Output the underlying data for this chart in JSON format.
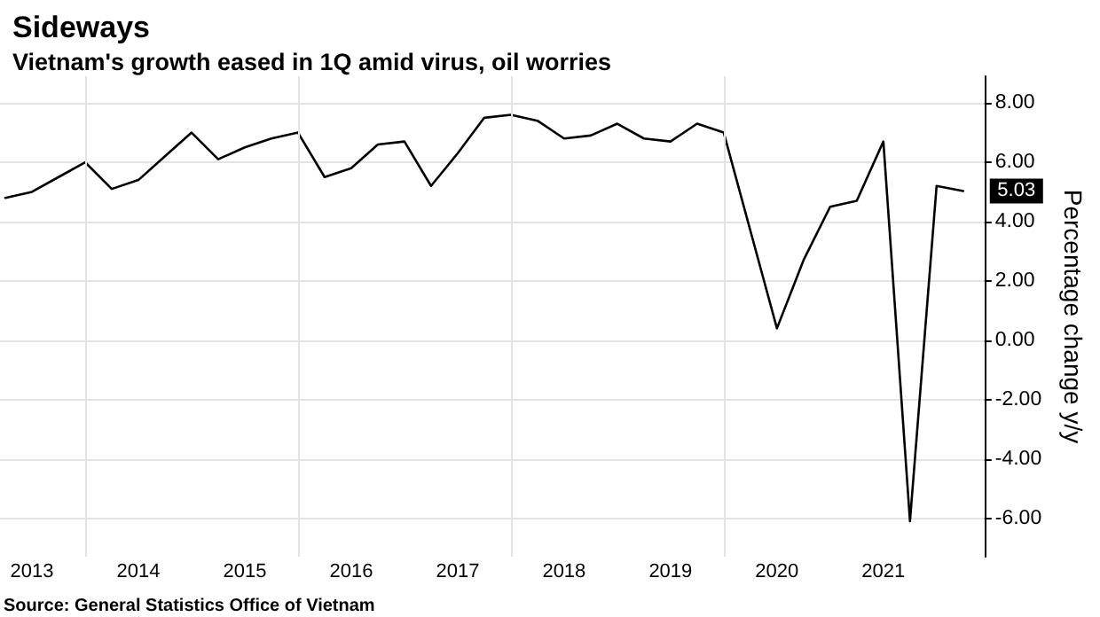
{
  "chart_data": {
    "type": "line",
    "title": "Sideways",
    "subtitle": "Vietnam's growth eased in 1Q amid virus, oil worries",
    "ylabel": "Percentage change y/y",
    "x": [
      2013.25,
      2013.5,
      2013.75,
      2014.0,
      2014.25,
      2014.5,
      2014.75,
      2015.0,
      2015.25,
      2015.5,
      2015.75,
      2016.0,
      2016.25,
      2016.5,
      2016.75,
      2017.0,
      2017.25,
      2017.5,
      2017.75,
      2018.0,
      2018.25,
      2018.5,
      2018.75,
      2019.0,
      2019.25,
      2019.5,
      2019.75,
      2020.0,
      2020.25,
      2020.5,
      2020.75,
      2021.0,
      2021.25,
      2021.5,
      2021.75,
      2022.0,
      2022.25
    ],
    "series": [
      {
        "color": "#000000",
        "values": [
          4.8,
          5.0,
          5.5,
          6.0,
          5.1,
          5.4,
          6.2,
          7.0,
          6.1,
          6.5,
          6.8,
          7.0,
          5.5,
          5.8,
          6.6,
          6.7,
          5.2,
          6.3,
          7.5,
          7.6,
          7.4,
          6.8,
          6.9,
          7.3,
          6.8,
          6.7,
          7.3,
          7.0,
          3.7,
          0.4,
          2.7,
          4.5,
          4.7,
          6.7,
          -6.1,
          5.2,
          5.03
        ]
      }
    ],
    "xlim": [
      2013.2,
      2022.45
    ],
    "ylim": [
      -7.3,
      8.9
    ],
    "xticks": [
      {
        "value": 2013.5,
        "label": "2013"
      },
      {
        "value": 2014,
        "label": null
      },
      {
        "value": 2014.5,
        "label": "2014"
      },
      {
        "value": 2015.5,
        "label": "2015"
      },
      {
        "value": 2016,
        "label": null
      },
      {
        "value": 2016.5,
        "label": "2016"
      },
      {
        "value": 2017.5,
        "label": "2017"
      },
      {
        "value": 2018,
        "label": null
      },
      {
        "value": 2018.5,
        "label": "2018"
      },
      {
        "value": 2019.5,
        "label": "2019"
      },
      {
        "value": 2020,
        "label": null
      },
      {
        "value": 2020.5,
        "label": "2020"
      },
      {
        "value": 2021.5,
        "label": "2021"
      }
    ],
    "yticks": [
      {
        "value": -6,
        "label": "-6.00"
      },
      {
        "value": -4,
        "label": "-4.00"
      },
      {
        "value": -2,
        "label": "-2.00"
      },
      {
        "value": 0,
        "label": "0.00"
      },
      {
        "value": 2,
        "label": "2.00"
      },
      {
        "value": 4,
        "label": "4.00"
      },
      {
        "value": 6,
        "label": "6.00"
      },
      {
        "value": 8,
        "label": "8.00"
      }
    ],
    "grid": true,
    "marker": "none",
    "line_style": "solid",
    "annotations": [
      {
        "text": "5.03",
        "x": 2022.25,
        "y": 5.03
      },
      "Source: General Statistics Office of Vietnam"
    ]
  }
}
